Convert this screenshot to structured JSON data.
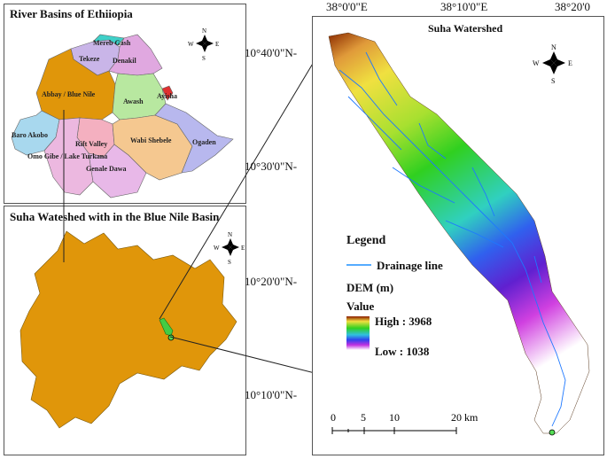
{
  "ethiopia_panel": {
    "title": "River Basins of Ethiiopia",
    "basins": [
      {
        "name": "Mereb Gash",
        "color": "#3fd0c8"
      },
      {
        "name": "Tekeze",
        "color": "#c9b5e8"
      },
      {
        "name": "Denakil",
        "color": "#e0a8e0"
      },
      {
        "name": "Abbay / Blue Nile",
        "color": "#e0960a"
      },
      {
        "name": "Awash",
        "color": "#b8e8a0"
      },
      {
        "name": "Ayisha",
        "color": "#e03030"
      },
      {
        "name": "Baro Akobo",
        "color": "#a8d8ee"
      },
      {
        "name": "Rift Valley",
        "color": "#f4b0c0"
      },
      {
        "name": "Wabi Shebele",
        "color": "#f5c890"
      },
      {
        "name": "Ogaden",
        "color": "#b8b8ee"
      },
      {
        "name": "Omo Gibe / Lake Turkana",
        "color": "#ecb8e0"
      },
      {
        "name": "Genale Dawa",
        "color": "#e8b8e8"
      }
    ]
  },
  "bluenile_panel": {
    "title": "Suha Wateshed with in the Blue Nile Basin",
    "fill_color": "#e0960a"
  },
  "suha_panel": {
    "title": "Suha Watershed",
    "lon_labels": [
      "38°0'0\"E",
      "38°10'0\"E",
      "38°20'0"
    ],
    "lat_labels": [
      "10°40'0\"N-",
      "10°30'0\"N-",
      "10°20'0\"N-",
      "10°10'0\"N-"
    ],
    "legend": {
      "title": "Legend",
      "drainage_label": "Drainage line",
      "drainage_color": "#1e90ff",
      "dem_title": "DEM (m)",
      "value_label": "Value",
      "high_label": "High : 3968",
      "low_label": "Low : 1038"
    },
    "scalebar": {
      "ticks": [
        "0",
        "5",
        "10",
        "20 km"
      ]
    }
  },
  "compass": {
    "n": "N",
    "s": "S",
    "e": "E",
    "w": "W"
  }
}
